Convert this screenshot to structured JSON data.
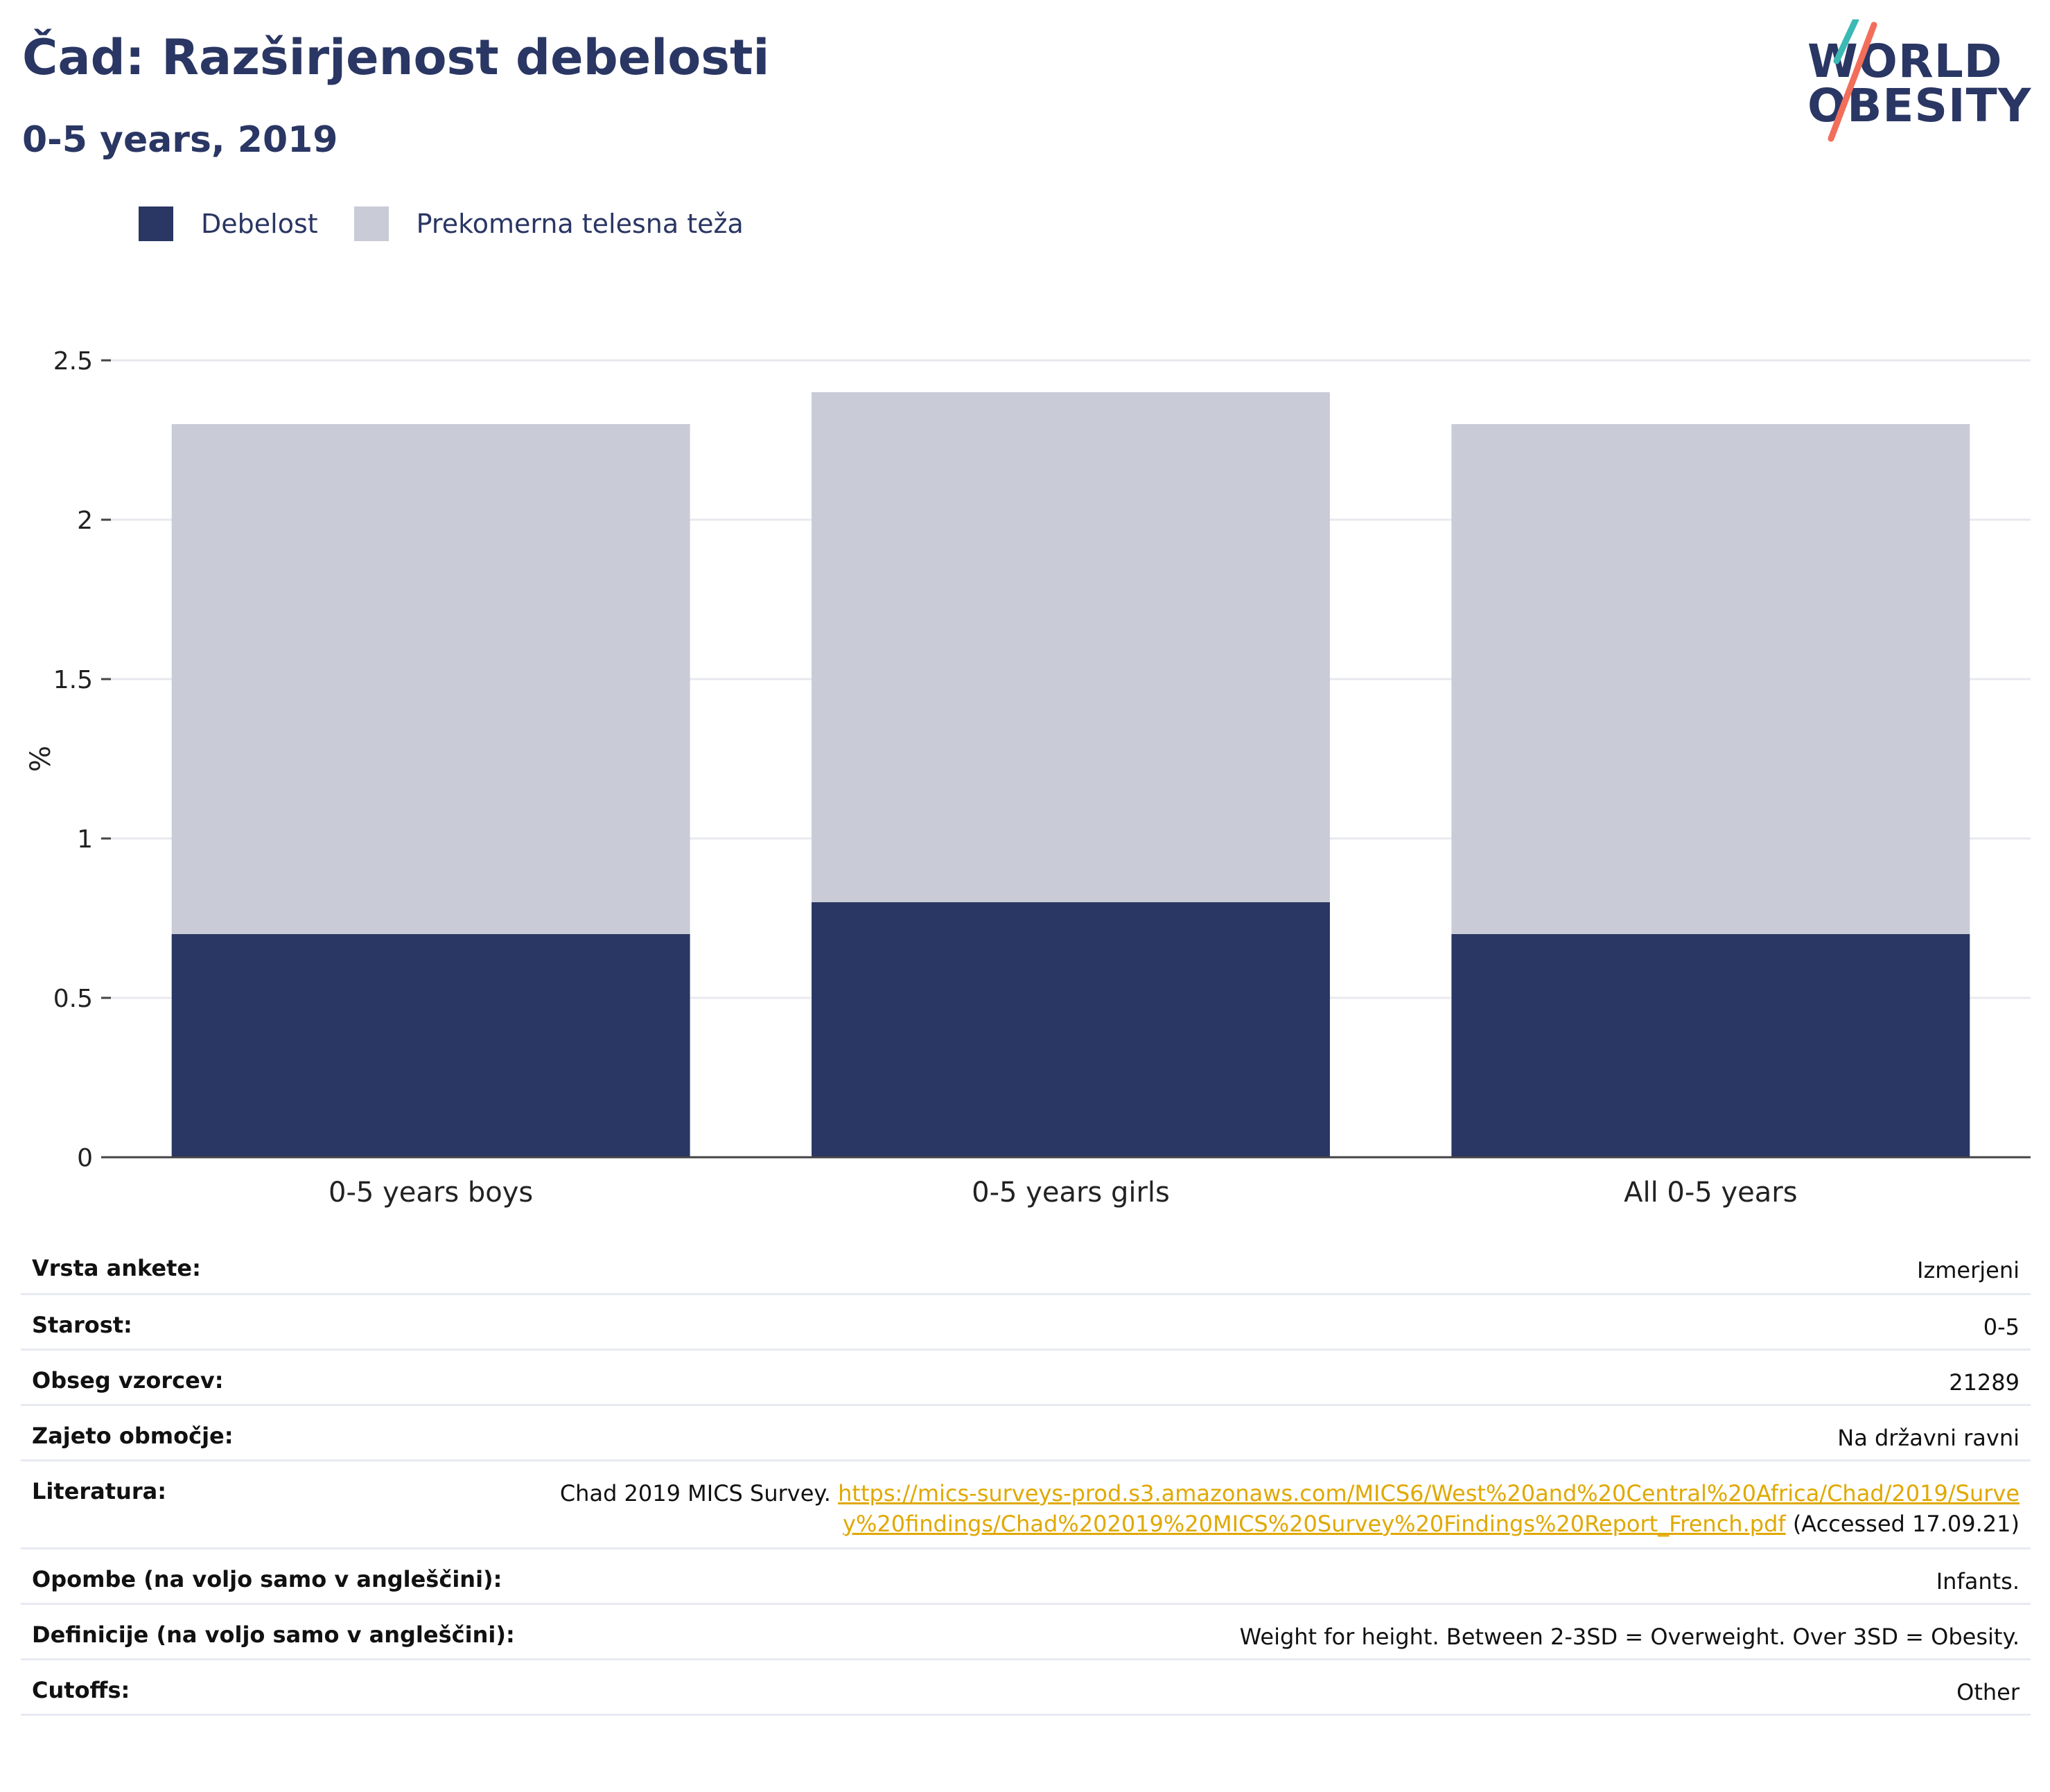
{
  "header": {
    "title": "Čad: Razširjenost debelosti",
    "subtitle": "0-5 years, 2019",
    "logo_line1": "WORLD",
    "logo_line2": "OBESITY"
  },
  "legend": {
    "items": [
      {
        "label": "Debelost",
        "color": "#2a3663"
      },
      {
        "label": "Prekomerna telesna teža",
        "color": "#c9cbd7"
      }
    ]
  },
  "chart_data": {
    "type": "bar",
    "stacked": true,
    "categories": [
      "0-5 years boys",
      "0-5 years girls",
      "All 0-5 years"
    ],
    "series": [
      {
        "name": "Debelost",
        "values": [
          0.7,
          0.8,
          0.7
        ],
        "color": "#2a3663"
      },
      {
        "name": "Prekomerna telesna teža",
        "values": [
          1.6,
          1.6,
          1.6
        ],
        "color": "#c9cbd7"
      }
    ],
    "ylabel": "%",
    "ylim": [
      0,
      2.5
    ],
    "yticks": [
      "0",
      "0.5",
      "1",
      "1.5",
      "2",
      "2.5"
    ],
    "grid": true,
    "legend_position": "top-left"
  },
  "meta": {
    "rows": [
      {
        "key": "Vrsta ankete:",
        "value": "Izmerjeni"
      },
      {
        "key": "Starost:",
        "value": "0-5"
      },
      {
        "key": "Obseg vzorcev:",
        "value": "21289"
      },
      {
        "key": "Zajeto območje:",
        "value": "Na državni ravni"
      }
    ],
    "literature": {
      "key": "Literatura:",
      "prefix": "Chad 2019 MICS Survey. ",
      "link": "https://mics-surveys-prod.s3.amazonaws.com/MICS6/West%20and%20Central%20Africa/Chad/2019/Survey%20findings/Chad%202019%20MICS%20Survey%20Findings%20Report_French.pdf",
      "suffix": " (Accessed 17.09.21)"
    },
    "rows2": [
      {
        "key": "Opombe (na voljo samo v angleščini):",
        "value": "Infants."
      },
      {
        "key": "Definicije (na voljo samo v angleščini):",
        "value": "Weight for height. Between 2-3SD = Overweight. Over 3SD = Obesity."
      },
      {
        "key": "Cutoffs:",
        "value": "Other"
      }
    ]
  }
}
